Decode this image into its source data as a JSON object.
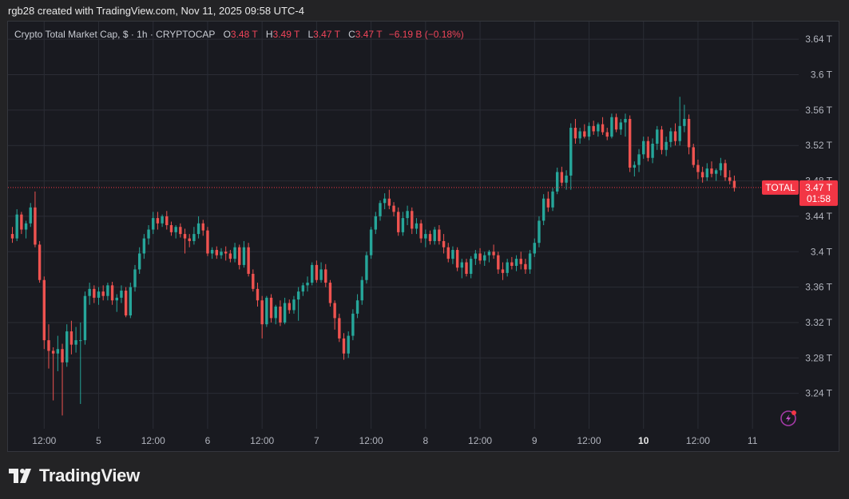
{
  "header": {
    "attribution": "rgb28 created with TradingView.com, Nov 11, 2025 09:58 UTC-4"
  },
  "legend": {
    "symbol": "Crypto Total Market Cap, $ · 1h · CRYPTOCAP",
    "o_label": "O",
    "o_value": "3.48 T",
    "h_label": "H",
    "h_value": "3.49 T",
    "l_label": "L",
    "l_value": "3.47 T",
    "c_label": "C",
    "c_value": "3.47 T",
    "change": "−6.19 B (−0.18%)"
  },
  "price_tag": {
    "name": "TOTAL",
    "price": "3.47 T",
    "countdown": "01:58"
  },
  "footer": {
    "brand": "TradingView"
  },
  "colors": {
    "up": "#26a69a",
    "down": "#ef5350",
    "last_price": "#f23645",
    "background": "#191a20",
    "grid": "#2b2d35"
  },
  "chart_data": {
    "type": "candlestick",
    "title": "Crypto Total Market Cap, $ · 1h · CRYPTOCAP",
    "y_unit": "T",
    "ylim": [
      3.2,
      3.66
    ],
    "y_ticks": [
      3.24,
      3.28,
      3.32,
      3.36,
      3.4,
      3.44,
      3.48,
      3.52,
      3.56,
      3.6,
      3.64
    ],
    "y_tick_labels": [
      "3.24 T",
      "3.28 T",
      "3.32 T",
      "3.36 T",
      "3.4 T",
      "3.44 T",
      "3.48 T",
      "3.52 T",
      "3.56 T",
      "3.6 T",
      "3.64 T"
    ],
    "x_ticks": [
      {
        "label": "12:00",
        "bar": 7,
        "bold": false
      },
      {
        "label": "5",
        "bar": 19,
        "bold": false
      },
      {
        "label": "12:00",
        "bar": 31,
        "bold": false
      },
      {
        "label": "6",
        "bar": 43,
        "bold": false
      },
      {
        "label": "12:00",
        "bar": 55,
        "bold": false
      },
      {
        "label": "7",
        "bar": 67,
        "bold": false
      },
      {
        "label": "12:00",
        "bar": 79,
        "bold": false
      },
      {
        "label": "8",
        "bar": 91,
        "bold": false
      },
      {
        "label": "12:00",
        "bar": 103,
        "bold": false
      },
      {
        "label": "9",
        "bar": 115,
        "bold": false
      },
      {
        "label": "12:00",
        "bar": 127,
        "bold": false
      },
      {
        "label": "10",
        "bar": 139,
        "bold": true
      },
      {
        "label": "12:00",
        "bar": 151,
        "bold": false
      },
      {
        "label": "11",
        "bar": 163,
        "bold": false
      }
    ],
    "last_price": 3.4725,
    "candles": [
      {
        "o": 3.42,
        "h": 3.428,
        "l": 3.41,
        "c": 3.415
      },
      {
        "o": 3.415,
        "h": 3.448,
        "l": 3.412,
        "c": 3.442
      },
      {
        "o": 3.442,
        "h": 3.445,
        "l": 3.42,
        "c": 3.425
      },
      {
        "o": 3.425,
        "h": 3.435,
        "l": 3.415,
        "c": 3.432
      },
      {
        "o": 3.432,
        "h": 3.455,
        "l": 3.428,
        "c": 3.45
      },
      {
        "o": 3.45,
        "h": 3.468,
        "l": 3.405,
        "c": 3.408
      },
      {
        "o": 3.408,
        "h": 3.412,
        "l": 3.365,
        "c": 3.368
      },
      {
        "o": 3.368,
        "h": 3.372,
        "l": 3.29,
        "c": 3.3
      },
      {
        "o": 3.3,
        "h": 3.318,
        "l": 3.268,
        "c": 3.288
      },
      {
        "o": 3.288,
        "h": 3.292,
        "l": 3.232,
        "c": 3.285
      },
      {
        "o": 3.285,
        "h": 3.305,
        "l": 3.265,
        "c": 3.29
      },
      {
        "o": 3.29,
        "h": 3.296,
        "l": 3.215,
        "c": 3.275
      },
      {
        "o": 3.275,
        "h": 3.318,
        "l": 3.27,
        "c": 3.31
      },
      {
        "o": 3.31,
        "h": 3.322,
        "l": 3.284,
        "c": 3.295
      },
      {
        "o": 3.295,
        "h": 3.315,
        "l": 3.286,
        "c": 3.3
      },
      {
        "o": 3.3,
        "h": 3.32,
        "l": 3.228,
        "c": 3.3
      },
      {
        "o": 3.3,
        "h": 3.355,
        "l": 3.295,
        "c": 3.35
      },
      {
        "o": 3.35,
        "h": 3.365,
        "l": 3.34,
        "c": 3.358
      },
      {
        "o": 3.358,
        "h": 3.362,
        "l": 3.342,
        "c": 3.348
      },
      {
        "o": 3.348,
        "h": 3.36,
        "l": 3.34,
        "c": 3.355
      },
      {
        "o": 3.355,
        "h": 3.362,
        "l": 3.345,
        "c": 3.35
      },
      {
        "o": 3.35,
        "h": 3.365,
        "l": 3.345,
        "c": 3.362
      },
      {
        "o": 3.362,
        "h": 3.366,
        "l": 3.34,
        "c": 3.345
      },
      {
        "o": 3.345,
        "h": 3.352,
        "l": 3.332,
        "c": 3.348
      },
      {
        "o": 3.348,
        "h": 3.362,
        "l": 3.342,
        "c": 3.356
      },
      {
        "o": 3.356,
        "h": 3.36,
        "l": 3.326,
        "c": 3.328
      },
      {
        "o": 3.328,
        "h": 3.365,
        "l": 3.325,
        "c": 3.36
      },
      {
        "o": 3.36,
        "h": 3.385,
        "l": 3.355,
        "c": 3.38
      },
      {
        "o": 3.38,
        "h": 3.405,
        "l": 3.375,
        "c": 3.398
      },
      {
        "o": 3.398,
        "h": 3.42,
        "l": 3.392,
        "c": 3.415
      },
      {
        "o": 3.415,
        "h": 3.43,
        "l": 3.408,
        "c": 3.425
      },
      {
        "o": 3.425,
        "h": 3.445,
        "l": 3.42,
        "c": 3.438
      },
      {
        "o": 3.438,
        "h": 3.445,
        "l": 3.425,
        "c": 3.432
      },
      {
        "o": 3.432,
        "h": 3.442,
        "l": 3.428,
        "c": 3.44
      },
      {
        "o": 3.44,
        "h": 3.446,
        "l": 3.425,
        "c": 3.43
      },
      {
        "o": 3.43,
        "h": 3.434,
        "l": 3.418,
        "c": 3.422
      },
      {
        "o": 3.422,
        "h": 3.43,
        "l": 3.415,
        "c": 3.428
      },
      {
        "o": 3.428,
        "h": 3.432,
        "l": 3.416,
        "c": 3.42
      },
      {
        "o": 3.42,
        "h": 3.426,
        "l": 3.398,
        "c": 3.415
      },
      {
        "o": 3.415,
        "h": 3.42,
        "l": 3.405,
        "c": 3.412
      },
      {
        "o": 3.412,
        "h": 3.428,
        "l": 3.408,
        "c": 3.42
      },
      {
        "o": 3.42,
        "h": 3.44,
        "l": 3.415,
        "c": 3.432
      },
      {
        "o": 3.432,
        "h": 3.436,
        "l": 3.418,
        "c": 3.424
      },
      {
        "o": 3.424,
        "h": 3.428,
        "l": 3.395,
        "c": 3.398
      },
      {
        "o": 3.398,
        "h": 3.405,
        "l": 3.392,
        "c": 3.402
      },
      {
        "o": 3.402,
        "h": 3.406,
        "l": 3.392,
        "c": 3.396
      },
      {
        "o": 3.396,
        "h": 3.404,
        "l": 3.392,
        "c": 3.4
      },
      {
        "o": 3.4,
        "h": 3.406,
        "l": 3.39,
        "c": 3.398
      },
      {
        "o": 3.398,
        "h": 3.402,
        "l": 3.388,
        "c": 3.392
      },
      {
        "o": 3.392,
        "h": 3.41,
        "l": 3.388,
        "c": 3.405
      },
      {
        "o": 3.405,
        "h": 3.408,
        "l": 3.38,
        "c": 3.385
      },
      {
        "o": 3.385,
        "h": 3.412,
        "l": 3.382,
        "c": 3.405
      },
      {
        "o": 3.405,
        "h": 3.41,
        "l": 3.372,
        "c": 3.375
      },
      {
        "o": 3.375,
        "h": 3.38,
        "l": 3.355,
        "c": 3.358
      },
      {
        "o": 3.358,
        "h": 3.365,
        "l": 3.338,
        "c": 3.345
      },
      {
        "o": 3.345,
        "h": 3.35,
        "l": 3.302,
        "c": 3.318
      },
      {
        "o": 3.318,
        "h": 3.35,
        "l": 3.315,
        "c": 3.348
      },
      {
        "o": 3.348,
        "h": 3.352,
        "l": 3.32,
        "c": 3.325
      },
      {
        "o": 3.325,
        "h": 3.34,
        "l": 3.318,
        "c": 3.338
      },
      {
        "o": 3.338,
        "h": 3.345,
        "l": 3.316,
        "c": 3.32
      },
      {
        "o": 3.32,
        "h": 3.348,
        "l": 3.318,
        "c": 3.342
      },
      {
        "o": 3.342,
        "h": 3.346,
        "l": 3.33,
        "c": 3.334
      },
      {
        "o": 3.334,
        "h": 3.35,
        "l": 3.33,
        "c": 3.346
      },
      {
        "o": 3.346,
        "h": 3.36,
        "l": 3.322,
        "c": 3.355
      },
      {
        "o": 3.355,
        "h": 3.365,
        "l": 3.35,
        "c": 3.362
      },
      {
        "o": 3.362,
        "h": 3.372,
        "l": 3.355,
        "c": 3.365
      },
      {
        "o": 3.365,
        "h": 3.388,
        "l": 3.362,
        "c": 3.385
      },
      {
        "o": 3.385,
        "h": 3.39,
        "l": 3.365,
        "c": 3.368
      },
      {
        "o": 3.368,
        "h": 3.388,
        "l": 3.365,
        "c": 3.38
      },
      {
        "o": 3.38,
        "h": 3.386,
        "l": 3.36,
        "c": 3.365
      },
      {
        "o": 3.365,
        "h": 3.368,
        "l": 3.338,
        "c": 3.342
      },
      {
        "o": 3.342,
        "h": 3.345,
        "l": 3.312,
        "c": 3.325
      },
      {
        "o": 3.325,
        "h": 3.33,
        "l": 3.298,
        "c": 3.302
      },
      {
        "o": 3.302,
        "h": 3.308,
        "l": 3.278,
        "c": 3.285
      },
      {
        "o": 3.285,
        "h": 3.31,
        "l": 3.28,
        "c": 3.305
      },
      {
        "o": 3.305,
        "h": 3.335,
        "l": 3.3,
        "c": 3.33
      },
      {
        "o": 3.33,
        "h": 3.352,
        "l": 3.325,
        "c": 3.345
      },
      {
        "o": 3.345,
        "h": 3.372,
        "l": 3.34,
        "c": 3.368
      },
      {
        "o": 3.368,
        "h": 3.4,
        "l": 3.364,
        "c": 3.396
      },
      {
        "o": 3.396,
        "h": 3.428,
        "l": 3.392,
        "c": 3.425
      },
      {
        "o": 3.425,
        "h": 3.445,
        "l": 3.42,
        "c": 3.44
      },
      {
        "o": 3.44,
        "h": 3.458,
        "l": 3.435,
        "c": 3.455
      },
      {
        "o": 3.455,
        "h": 3.466,
        "l": 3.448,
        "c": 3.46
      },
      {
        "o": 3.46,
        "h": 3.47,
        "l": 3.448,
        "c": 3.452
      },
      {
        "o": 3.452,
        "h": 3.456,
        "l": 3.44,
        "c": 3.445
      },
      {
        "o": 3.445,
        "h": 3.45,
        "l": 3.418,
        "c": 3.422
      },
      {
        "o": 3.422,
        "h": 3.445,
        "l": 3.418,
        "c": 3.438
      },
      {
        "o": 3.438,
        "h": 3.452,
        "l": 3.43,
        "c": 3.446
      },
      {
        "o": 3.446,
        "h": 3.45,
        "l": 3.42,
        "c": 3.426
      },
      {
        "o": 3.426,
        "h": 3.438,
        "l": 3.42,
        "c": 3.432
      },
      {
        "o": 3.432,
        "h": 3.436,
        "l": 3.41,
        "c": 3.415
      },
      {
        "o": 3.415,
        "h": 3.425,
        "l": 3.405,
        "c": 3.42
      },
      {
        "o": 3.42,
        "h": 3.424,
        "l": 3.408,
        "c": 3.412
      },
      {
        "o": 3.412,
        "h": 3.428,
        "l": 3.408,
        "c": 3.425
      },
      {
        "o": 3.425,
        "h": 3.43,
        "l": 3.408,
        "c": 3.412
      },
      {
        "o": 3.412,
        "h": 3.42,
        "l": 3.398,
        "c": 3.405
      },
      {
        "o": 3.405,
        "h": 3.41,
        "l": 3.388,
        "c": 3.392
      },
      {
        "o": 3.392,
        "h": 3.406,
        "l": 3.386,
        "c": 3.402
      },
      {
        "o": 3.402,
        "h": 3.405,
        "l": 3.378,
        "c": 3.382
      },
      {
        "o": 3.382,
        "h": 3.392,
        "l": 3.37,
        "c": 3.388
      },
      {
        "o": 3.388,
        "h": 3.392,
        "l": 3.372,
        "c": 3.375
      },
      {
        "o": 3.375,
        "h": 3.395,
        "l": 3.37,
        "c": 3.392
      },
      {
        "o": 3.392,
        "h": 3.402,
        "l": 3.385,
        "c": 3.398
      },
      {
        "o": 3.398,
        "h": 3.404,
        "l": 3.386,
        "c": 3.39
      },
      {
        "o": 3.39,
        "h": 3.4,
        "l": 3.384,
        "c": 3.396
      },
      {
        "o": 3.396,
        "h": 3.402,
        "l": 3.388,
        "c": 3.4
      },
      {
        "o": 3.4,
        "h": 3.408,
        "l": 3.392,
        "c": 3.396
      },
      {
        "o": 3.396,
        "h": 3.4,
        "l": 3.375,
        "c": 3.38
      },
      {
        "o": 3.38,
        "h": 3.388,
        "l": 3.368,
        "c": 3.376
      },
      {
        "o": 3.376,
        "h": 3.392,
        "l": 3.372,
        "c": 3.388
      },
      {
        "o": 3.388,
        "h": 3.394,
        "l": 3.38,
        "c": 3.384
      },
      {
        "o": 3.384,
        "h": 3.396,
        "l": 3.378,
        "c": 3.392
      },
      {
        "o": 3.392,
        "h": 3.4,
        "l": 3.38,
        "c": 3.386
      },
      {
        "o": 3.386,
        "h": 3.392,
        "l": 3.375,
        "c": 3.38
      },
      {
        "o": 3.38,
        "h": 3.402,
        "l": 3.375,
        "c": 3.398
      },
      {
        "o": 3.398,
        "h": 3.415,
        "l": 3.394,
        "c": 3.41
      },
      {
        "o": 3.41,
        "h": 3.44,
        "l": 3.405,
        "c": 3.435
      },
      {
        "o": 3.435,
        "h": 3.465,
        "l": 3.43,
        "c": 3.46
      },
      {
        "o": 3.46,
        "h": 3.468,
        "l": 3.445,
        "c": 3.45
      },
      {
        "o": 3.45,
        "h": 3.472,
        "l": 3.446,
        "c": 3.468
      },
      {
        "o": 3.468,
        "h": 3.495,
        "l": 3.465,
        "c": 3.49
      },
      {
        "o": 3.49,
        "h": 3.496,
        "l": 3.474,
        "c": 3.478
      },
      {
        "o": 3.478,
        "h": 3.492,
        "l": 3.47,
        "c": 3.486
      },
      {
        "o": 3.486,
        "h": 3.545,
        "l": 3.47,
        "c": 3.54
      },
      {
        "o": 3.54,
        "h": 3.55,
        "l": 3.522,
        "c": 3.528
      },
      {
        "o": 3.528,
        "h": 3.54,
        "l": 3.522,
        "c": 3.536
      },
      {
        "o": 3.536,
        "h": 3.544,
        "l": 3.528,
        "c": 3.53
      },
      {
        "o": 3.53,
        "h": 3.546,
        "l": 3.526,
        "c": 3.542
      },
      {
        "o": 3.542,
        "h": 3.548,
        "l": 3.532,
        "c": 3.536
      },
      {
        "o": 3.536,
        "h": 3.546,
        "l": 3.53,
        "c": 3.544
      },
      {
        "o": 3.544,
        "h": 3.552,
        "l": 3.532,
        "c": 3.535
      },
      {
        "o": 3.535,
        "h": 3.54,
        "l": 3.526,
        "c": 3.53
      },
      {
        "o": 3.53,
        "h": 3.556,
        "l": 3.528,
        "c": 3.552
      },
      {
        "o": 3.552,
        "h": 3.556,
        "l": 3.535,
        "c": 3.538
      },
      {
        "o": 3.538,
        "h": 3.55,
        "l": 3.532,
        "c": 3.546
      },
      {
        "o": 3.546,
        "h": 3.556,
        "l": 3.53,
        "c": 3.55
      },
      {
        "o": 3.55,
        "h": 3.554,
        "l": 3.49,
        "c": 3.495
      },
      {
        "o": 3.495,
        "h": 3.502,
        "l": 3.485,
        "c": 3.498
      },
      {
        "o": 3.498,
        "h": 3.516,
        "l": 3.49,
        "c": 3.51
      },
      {
        "o": 3.51,
        "h": 3.53,
        "l": 3.505,
        "c": 3.525
      },
      {
        "o": 3.525,
        "h": 3.53,
        "l": 3.502,
        "c": 3.506
      },
      {
        "o": 3.506,
        "h": 3.528,
        "l": 3.5,
        "c": 3.522
      },
      {
        "o": 3.522,
        "h": 3.542,
        "l": 3.515,
        "c": 3.538
      },
      {
        "o": 3.538,
        "h": 3.542,
        "l": 3.51,
        "c": 3.515
      },
      {
        "o": 3.515,
        "h": 3.53,
        "l": 3.508,
        "c": 3.524
      },
      {
        "o": 3.524,
        "h": 3.54,
        "l": 3.518,
        "c": 3.536
      },
      {
        "o": 3.536,
        "h": 3.545,
        "l": 3.52,
        "c": 3.525
      },
      {
        "o": 3.525,
        "h": 3.575,
        "l": 3.52,
        "c": 3.542
      },
      {
        "o": 3.542,
        "h": 3.566,
        "l": 3.535,
        "c": 3.55
      },
      {
        "o": 3.55,
        "h": 3.555,
        "l": 3.51,
        "c": 3.518
      },
      {
        "o": 3.518,
        "h": 3.522,
        "l": 3.495,
        "c": 3.498
      },
      {
        "o": 3.498,
        "h": 3.504,
        "l": 3.482,
        "c": 3.49
      },
      {
        "o": 3.49,
        "h": 3.496,
        "l": 3.478,
        "c": 3.484
      },
      {
        "o": 3.484,
        "h": 3.5,
        "l": 3.48,
        "c": 3.494
      },
      {
        "o": 3.494,
        "h": 3.502,
        "l": 3.484,
        "c": 3.488
      },
      {
        "o": 3.488,
        "h": 3.494,
        "l": 3.48,
        "c": 3.492
      },
      {
        "o": 3.492,
        "h": 3.506,
        "l": 3.486,
        "c": 3.5
      },
      {
        "o": 3.5,
        "h": 3.504,
        "l": 3.48,
        "c": 3.484
      },
      {
        "o": 3.484,
        "h": 3.492,
        "l": 3.476,
        "c": 3.48
      },
      {
        "o": 3.48,
        "h": 3.486,
        "l": 3.468,
        "c": 3.472
      }
    ]
  }
}
